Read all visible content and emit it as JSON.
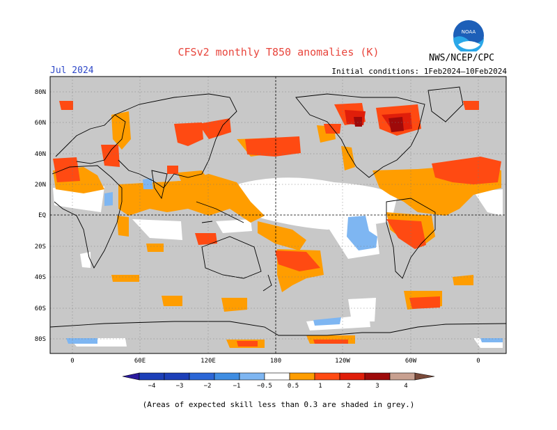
{
  "title": "CFSv2 monthly T850 anomalies (K)",
  "month": "Jul 2024",
  "initial_conditions": "Initial conditions: 1Feb2024–10Feb2024",
  "agency": "NWS/NCEP/CPC",
  "logo_text": "NOAA",
  "footnote": "(Areas of expected skill less than 0.3 are shaded in grey.)",
  "lat_labels": [
    "80N",
    "60N",
    "40N",
    "20N",
    "EQ",
    "20S",
    "40S",
    "60S",
    "80S"
  ],
  "lon_labels": [
    "0",
    "60E",
    "120E",
    "180",
    "120W",
    "60W",
    "0"
  ],
  "colorbar": {
    "labels": [
      "−4",
      "−3",
      "−2",
      "−1",
      "−0.5",
      "0.5",
      "1",
      "2",
      "3",
      "4"
    ],
    "colors": [
      "#2a1a9e",
      "#1c3fb8",
      "#2b66d6",
      "#3f8de2",
      "#7eb6f2",
      "#ffffff",
      "#ff9d00",
      "#ff4a12",
      "#e01e0a",
      "#9e0a0a",
      "#c8a090",
      "#7a4a3a"
    ]
  },
  "colors": {
    "grey_mask": "#c8c8c8",
    "coast": "#000000",
    "title": "#e8453c",
    "month": "#2d47c8"
  }
}
